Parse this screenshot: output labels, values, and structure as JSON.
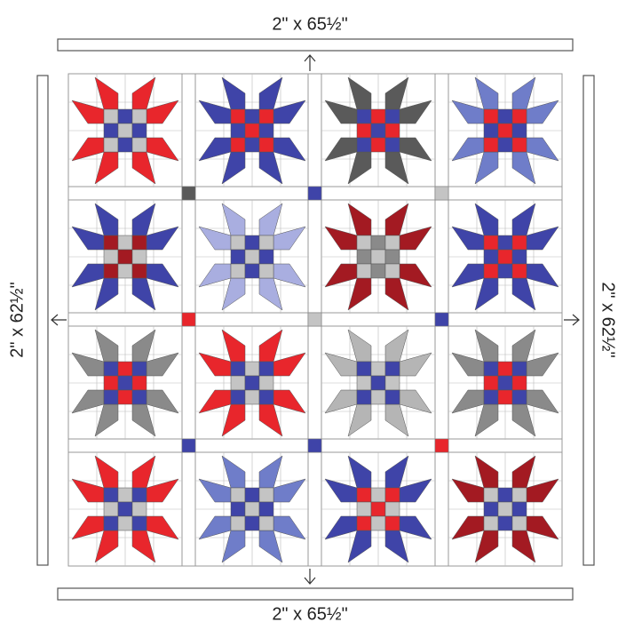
{
  "labels": {
    "top": "2\" x 65½\"",
    "bottom": "2\" x 65½\"",
    "left": "2\" x 62½\"",
    "right": "2\" x 62½\""
  }
}
